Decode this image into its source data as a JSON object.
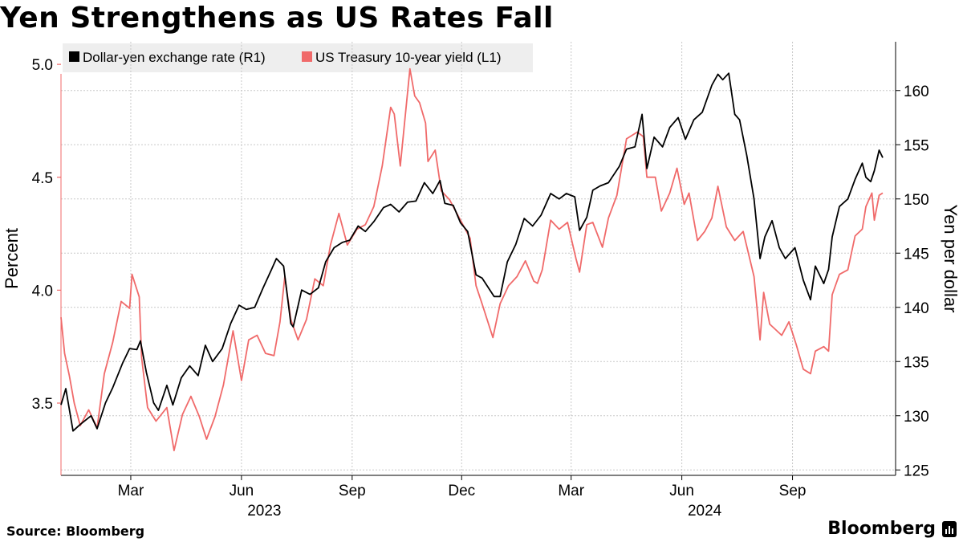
{
  "chart_data": {
    "type": "line",
    "title": "Yen Strengthens as US Rates Fall",
    "source": "Source: Bloomberg",
    "brand": "Bloomberg",
    "legend_position": "top-left",
    "grid": true,
    "x_range": [
      "2023-01-02",
      "2024-11-15"
    ],
    "x_ticks": [
      {
        "date": "2023-03-01",
        "label": "Mar"
      },
      {
        "date": "2023-06-01",
        "label": "Jun"
      },
      {
        "date": "2023-09-01",
        "label": "Sep"
      },
      {
        "date": "2023-12-01",
        "label": "Dec"
      },
      {
        "date": "2024-03-01",
        "label": "Mar"
      },
      {
        "date": "2024-06-01",
        "label": "Jun"
      },
      {
        "date": "2024-09-01",
        "label": "Sep"
      }
    ],
    "x_year_labels": [
      {
        "date": "2023-06-20",
        "label": "2023"
      },
      {
        "date": "2024-06-20",
        "label": "2024"
      }
    ],
    "y_left": {
      "label": "Percent",
      "range": [
        3.18,
        5.1
      ],
      "ticks": [
        3.5,
        4.0,
        4.5,
        5.0
      ],
      "tick_labels": [
        "3.5",
        "4.0",
        "4.5",
        "5.0"
      ]
    },
    "y_right": {
      "label": "Yen per dollar",
      "range": [
        124.5,
        164.5
      ],
      "ticks": [
        125,
        130,
        135,
        140,
        145,
        150,
        155,
        160
      ],
      "tick_labels": [
        "125",
        "130",
        "135",
        "140",
        "145",
        "150",
        "155",
        "160"
      ]
    },
    "series": [
      {
        "name": "Dollar-yen exchange rate (R1)",
        "axis": "right",
        "color": "#000000",
        "points": [
          [
            "2023-01-02",
            131.0
          ],
          [
            "2023-01-06",
            132.5
          ],
          [
            "2023-01-12",
            128.6
          ],
          [
            "2023-01-18",
            129.2
          ],
          [
            "2023-01-27",
            130.0
          ],
          [
            "2023-02-01",
            128.8
          ],
          [
            "2023-02-08",
            131.2
          ],
          [
            "2023-02-14",
            132.6
          ],
          [
            "2023-02-22",
            134.8
          ],
          [
            "2023-02-28",
            136.2
          ],
          [
            "2023-03-06",
            136.1
          ],
          [
            "2023-03-09",
            136.9
          ],
          [
            "2023-03-14",
            134.0
          ],
          [
            "2023-03-20",
            131.2
          ],
          [
            "2023-03-24",
            130.5
          ],
          [
            "2023-03-31",
            132.8
          ],
          [
            "2023-04-05",
            131.0
          ],
          [
            "2023-04-12",
            133.5
          ],
          [
            "2023-04-19",
            134.6
          ],
          [
            "2023-04-26",
            133.7
          ],
          [
            "2023-05-02",
            136.5
          ],
          [
            "2023-05-08",
            135.0
          ],
          [
            "2023-05-16",
            136.2
          ],
          [
            "2023-05-23",
            138.5
          ],
          [
            "2023-05-30",
            140.2
          ],
          [
            "2023-06-05",
            139.8
          ],
          [
            "2023-06-12",
            140.0
          ],
          [
            "2023-06-19",
            141.8
          ],
          [
            "2023-06-26",
            143.5
          ],
          [
            "2023-06-30",
            144.5
          ],
          [
            "2023-07-06",
            143.8
          ],
          [
            "2023-07-12",
            138.5
          ],
          [
            "2023-07-14",
            138.2
          ],
          [
            "2023-07-21",
            141.6
          ],
          [
            "2023-07-28",
            141.2
          ],
          [
            "2023-08-04",
            141.8
          ],
          [
            "2023-08-10",
            144.2
          ],
          [
            "2023-08-17",
            145.5
          ],
          [
            "2023-08-24",
            146.0
          ],
          [
            "2023-08-30",
            146.2
          ],
          [
            "2023-09-06",
            147.5
          ],
          [
            "2023-09-12",
            147.0
          ],
          [
            "2023-09-19",
            147.9
          ],
          [
            "2023-09-27",
            149.2
          ],
          [
            "2023-10-03",
            149.5
          ],
          [
            "2023-10-10",
            148.8
          ],
          [
            "2023-10-17",
            149.7
          ],
          [
            "2023-10-24",
            149.8
          ],
          [
            "2023-10-31",
            151.5
          ],
          [
            "2023-11-07",
            150.5
          ],
          [
            "2023-11-13",
            151.7
          ],
          [
            "2023-11-17",
            149.6
          ],
          [
            "2023-11-24",
            149.4
          ],
          [
            "2023-11-30",
            147.8
          ],
          [
            "2023-12-06",
            147.0
          ],
          [
            "2023-12-13",
            143.0
          ],
          [
            "2023-12-18",
            142.7
          ],
          [
            "2023-12-28",
            141.0
          ],
          [
            "2024-01-02",
            141.0
          ],
          [
            "2024-01-08",
            144.2
          ],
          [
            "2024-01-15",
            145.8
          ],
          [
            "2024-01-22",
            148.2
          ],
          [
            "2024-01-29",
            147.5
          ],
          [
            "2024-02-05",
            148.5
          ],
          [
            "2024-02-13",
            150.5
          ],
          [
            "2024-02-20",
            150.0
          ],
          [
            "2024-02-26",
            150.5
          ],
          [
            "2024-03-04",
            150.2
          ],
          [
            "2024-03-08",
            147.1
          ],
          [
            "2024-03-14",
            148.3
          ],
          [
            "2024-03-19",
            150.8
          ],
          [
            "2024-03-25",
            151.2
          ],
          [
            "2024-04-01",
            151.5
          ],
          [
            "2024-04-10",
            153.0
          ],
          [
            "2024-04-16",
            154.6
          ],
          [
            "2024-04-23",
            154.8
          ],
          [
            "2024-04-29",
            157.8
          ],
          [
            "2024-05-03",
            152.8
          ],
          [
            "2024-05-09",
            155.7
          ],
          [
            "2024-05-16",
            154.8
          ],
          [
            "2024-05-22",
            156.6
          ],
          [
            "2024-05-29",
            157.5
          ],
          [
            "2024-06-04",
            155.5
          ],
          [
            "2024-06-11",
            157.3
          ],
          [
            "2024-06-18",
            158.0
          ],
          [
            "2024-06-26",
            160.5
          ],
          [
            "2024-07-01",
            161.5
          ],
          [
            "2024-07-05",
            161.0
          ],
          [
            "2024-07-10",
            161.6
          ],
          [
            "2024-07-15",
            157.8
          ],
          [
            "2024-07-19",
            157.3
          ],
          [
            "2024-07-25",
            154.0
          ],
          [
            "2024-07-31",
            150.0
          ],
          [
            "2024-08-05",
            144.5
          ],
          [
            "2024-08-09",
            146.5
          ],
          [
            "2024-08-15",
            148.0
          ],
          [
            "2024-08-21",
            145.5
          ],
          [
            "2024-08-26",
            144.5
          ],
          [
            "2024-09-03",
            145.5
          ],
          [
            "2024-09-10",
            142.5
          ],
          [
            "2024-09-16",
            140.7
          ],
          [
            "2024-09-20",
            143.8
          ],
          [
            "2024-09-27",
            142.2
          ],
          [
            "2024-10-01",
            143.5
          ],
          [
            "2024-10-04",
            146.5
          ],
          [
            "2024-10-10",
            149.3
          ],
          [
            "2024-10-17",
            150.0
          ],
          [
            "2024-10-23",
            151.8
          ],
          [
            "2024-10-29",
            153.3
          ],
          [
            "2024-11-01",
            152.0
          ],
          [
            "2024-11-05",
            151.6
          ],
          [
            "2024-11-08",
            152.6
          ],
          [
            "2024-11-12",
            154.5
          ],
          [
            "2024-11-15",
            153.8
          ]
        ]
      },
      {
        "name": "US Treasury 10-year yield (L1)",
        "axis": "left",
        "color": "#f06a6a",
        "points": [
          [
            "2023-01-02",
            3.88
          ],
          [
            "2023-01-05",
            3.72
          ],
          [
            "2023-01-09",
            3.62
          ],
          [
            "2023-01-13",
            3.5
          ],
          [
            "2023-01-18",
            3.4
          ],
          [
            "2023-01-25",
            3.47
          ],
          [
            "2023-02-01",
            3.39
          ],
          [
            "2023-02-07",
            3.63
          ],
          [
            "2023-02-14",
            3.77
          ],
          [
            "2023-02-21",
            3.95
          ],
          [
            "2023-02-28",
            3.92
          ],
          [
            "2023-03-02",
            4.07
          ],
          [
            "2023-03-08",
            3.97
          ],
          [
            "2023-03-10",
            3.7
          ],
          [
            "2023-03-15",
            3.48
          ],
          [
            "2023-03-22",
            3.42
          ],
          [
            "2023-03-31",
            3.48
          ],
          [
            "2023-04-06",
            3.29
          ],
          [
            "2023-04-13",
            3.45
          ],
          [
            "2023-04-20",
            3.53
          ],
          [
            "2023-04-27",
            3.44
          ],
          [
            "2023-05-03",
            3.34
          ],
          [
            "2023-05-10",
            3.44
          ],
          [
            "2023-05-17",
            3.58
          ],
          [
            "2023-05-25",
            3.82
          ],
          [
            "2023-06-01",
            3.6
          ],
          [
            "2023-06-07",
            3.78
          ],
          [
            "2023-06-14",
            3.8
          ],
          [
            "2023-06-21",
            3.72
          ],
          [
            "2023-06-28",
            3.71
          ],
          [
            "2023-07-03",
            3.86
          ],
          [
            "2023-07-07",
            4.06
          ],
          [
            "2023-07-12",
            3.87
          ],
          [
            "2023-07-18",
            3.78
          ],
          [
            "2023-07-25",
            3.87
          ],
          [
            "2023-08-01",
            4.05
          ],
          [
            "2023-08-08",
            4.02
          ],
          [
            "2023-08-14",
            4.2
          ],
          [
            "2023-08-21",
            4.34
          ],
          [
            "2023-08-28",
            4.2
          ],
          [
            "2023-09-05",
            4.27
          ],
          [
            "2023-09-12",
            4.29
          ],
          [
            "2023-09-19",
            4.37
          ],
          [
            "2023-09-26",
            4.55
          ],
          [
            "2023-10-03",
            4.81
          ],
          [
            "2023-10-06",
            4.78
          ],
          [
            "2023-10-11",
            4.55
          ],
          [
            "2023-10-19",
            4.98
          ],
          [
            "2023-10-23",
            4.86
          ],
          [
            "2023-10-27",
            4.83
          ],
          [
            "2023-11-01",
            4.74
          ],
          [
            "2023-11-03",
            4.57
          ],
          [
            "2023-11-09",
            4.62
          ],
          [
            "2023-11-14",
            4.44
          ],
          [
            "2023-11-21",
            4.4
          ],
          [
            "2023-11-28",
            4.33
          ],
          [
            "2023-12-04",
            4.27
          ],
          [
            "2023-12-08",
            4.23
          ],
          [
            "2023-12-13",
            4.02
          ],
          [
            "2023-12-18",
            3.94
          ],
          [
            "2023-12-27",
            3.79
          ],
          [
            "2024-01-02",
            3.94
          ],
          [
            "2024-01-09",
            4.02
          ],
          [
            "2024-01-16",
            4.06
          ],
          [
            "2024-01-23",
            4.13
          ],
          [
            "2024-01-30",
            4.04
          ],
          [
            "2024-02-02",
            4.03
          ],
          [
            "2024-02-06",
            4.09
          ],
          [
            "2024-02-13",
            4.31
          ],
          [
            "2024-02-20",
            4.27
          ],
          [
            "2024-02-27",
            4.3
          ],
          [
            "2024-03-05",
            4.14
          ],
          [
            "2024-03-08",
            4.08
          ],
          [
            "2024-03-14",
            4.29
          ],
          [
            "2024-03-19",
            4.3
          ],
          [
            "2024-03-27",
            4.19
          ],
          [
            "2024-04-01",
            4.32
          ],
          [
            "2024-04-08",
            4.42
          ],
          [
            "2024-04-16",
            4.67
          ],
          [
            "2024-04-25",
            4.7
          ],
          [
            "2024-04-30",
            4.68
          ],
          [
            "2024-05-03",
            4.5
          ],
          [
            "2024-05-10",
            4.5
          ],
          [
            "2024-05-15",
            4.35
          ],
          [
            "2024-05-22",
            4.43
          ],
          [
            "2024-05-28",
            4.54
          ],
          [
            "2024-06-03",
            4.38
          ],
          [
            "2024-06-07",
            4.43
          ],
          [
            "2024-06-14",
            4.22
          ],
          [
            "2024-06-20",
            4.26
          ],
          [
            "2024-06-26",
            4.32
          ],
          [
            "2024-07-01",
            4.46
          ],
          [
            "2024-07-08",
            4.28
          ],
          [
            "2024-07-15",
            4.22
          ],
          [
            "2024-07-22",
            4.26
          ],
          [
            "2024-07-31",
            4.06
          ],
          [
            "2024-08-05",
            3.78
          ],
          [
            "2024-08-08",
            3.99
          ],
          [
            "2024-08-13",
            3.85
          ],
          [
            "2024-08-19",
            3.82
          ],
          [
            "2024-08-23",
            3.8
          ],
          [
            "2024-08-29",
            3.86
          ],
          [
            "2024-09-04",
            3.76
          ],
          [
            "2024-09-10",
            3.65
          ],
          [
            "2024-09-16",
            3.63
          ],
          [
            "2024-09-20",
            3.73
          ],
          [
            "2024-09-27",
            3.75
          ],
          [
            "2024-10-01",
            3.73
          ],
          [
            "2024-10-04",
            3.98
          ],
          [
            "2024-10-10",
            4.07
          ],
          [
            "2024-10-17",
            4.09
          ],
          [
            "2024-10-23",
            4.24
          ],
          [
            "2024-10-29",
            4.27
          ],
          [
            "2024-11-01",
            4.37
          ],
          [
            "2024-11-06",
            4.43
          ],
          [
            "2024-11-08",
            4.31
          ],
          [
            "2024-11-12",
            4.42
          ],
          [
            "2024-11-15",
            4.43
          ]
        ]
      }
    ]
  }
}
